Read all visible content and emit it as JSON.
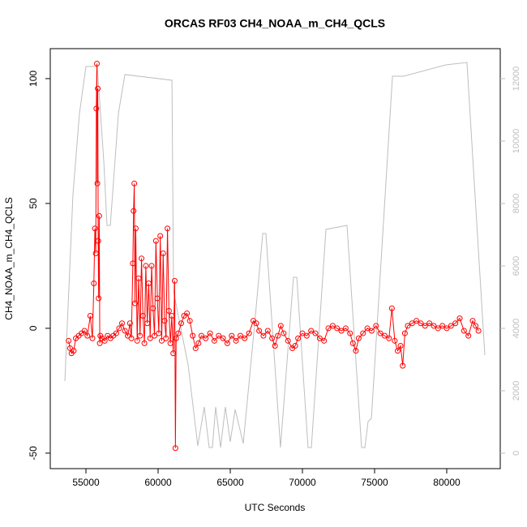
{
  "chart_data": {
    "type": "line",
    "title": "ORCAS RF03 CH4_NOAA_m_CH4_QCLS",
    "x_label": "UTC Seconds",
    "y_label": "CH4_NOAA_m_CH4_QCLS",
    "xlim": [
      52528,
      83708
    ],
    "xticks": [
      55000,
      60000,
      65000,
      70000,
      75000,
      80000
    ],
    "ylim": [
      -56.2,
      112.0
    ],
    "yticks": [
      -50,
      0,
      50,
      100
    ],
    "y2lim": [
      -494,
      12961
    ],
    "y2ticks": [
      0,
      2000,
      4000,
      6000,
      8000,
      10000,
      12000
    ],
    "series": [
      {
        "color": "#bebebe",
        "axis": "y2",
        "markers": false,
        "x": [
          53540,
          54100,
          54550,
          55000,
          55790,
          56240,
          56460,
          56690,
          57250,
          57700,
          60960,
          61070,
          62080,
          62750,
          63200,
          63540,
          63760,
          63990,
          64330,
          64660,
          65000,
          65340,
          65900,
          66690,
          67250,
          67470,
          68480,
          69380,
          69610,
          70390,
          70620,
          71630,
          73090,
          74100,
          74330,
          74550,
          74780,
          76240,
          77020,
          79940,
          81400,
          82640
        ],
        "values": [
          2312,
          8286,
          10883,
          12390,
          12390,
          9325,
          7299,
          7299,
          10883,
          12130,
          11948,
          5169,
          2831,
          234,
          1481,
          182,
          182,
          1481,
          182,
          1481,
          364,
          1403,
          312,
          4130,
          7039,
          7039,
          182,
          5636,
          5636,
          182,
          182,
          7169,
          7299,
          182,
          182,
          1013,
          1117,
          12078,
          12078,
          12442,
          12519,
          3143
        ]
      },
      {
        "color": "#ff0000",
        "markers": true,
        "x": [
          53800,
          53900,
          54000,
          54150,
          54300,
          54500,
          54700,
          54900,
          55100,
          55300,
          55450,
          55550,
          55620,
          55680,
          55720,
          55760,
          55790,
          55820,
          55850,
          55880,
          55920,
          55960,
          56000,
          56100,
          56300,
          56500,
          56700,
          56900,
          57100,
          57300,
          57500,
          57700,
          57900,
          58050,
          58150,
          58250,
          58300,
          58350,
          58400,
          58450,
          58550,
          58650,
          58750,
          58850,
          58950,
          59050,
          59150,
          59250,
          59350,
          59450,
          59550,
          59650,
          59750,
          59850,
          59950,
          60050,
          60150,
          60250,
          60350,
          60450,
          60550,
          60650,
          60750,
          60850,
          60950,
          61050,
          61150,
          61200,
          61250,
          61400,
          61600,
          61800,
          62000,
          62200,
          62400,
          62600,
          62800,
          63000,
          63300,
          63600,
          63900,
          64200,
          64500,
          64800,
          65100,
          65400,
          65700,
          66000,
          66300,
          66600,
          66800,
          67000,
          67300,
          67600,
          67900,
          68100,
          68300,
          68500,
          68700,
          69000,
          69300,
          69500,
          69700,
          70000,
          70300,
          70600,
          70900,
          71200,
          71500,
          71800,
          72100,
          72400,
          72700,
          73000,
          73300,
          73500,
          73700,
          73900,
          74200,
          74500,
          74800,
          75100,
          75400,
          75700,
          76000,
          76200,
          76400,
          76600,
          76800,
          76950,
          77100,
          77300,
          77600,
          77900,
          78200,
          78500,
          78800,
          79100,
          79400,
          79700,
          80000,
          80300,
          80600,
          80900,
          81200,
          81500,
          81800,
          82000,
          82200
        ],
        "values": [
          -5,
          -8,
          -10,
          -9,
          -4,
          -3,
          -2,
          -1,
          -3,
          5,
          -4,
          18,
          40,
          30,
          88,
          106,
          58,
          96,
          35,
          12,
          45,
          -6,
          -3,
          -4,
          -5,
          -3,
          -4,
          -3,
          -2,
          0,
          2,
          -1,
          -3,
          2,
          -4,
          26,
          47,
          58,
          10,
          40,
          -5,
          20,
          -3,
          28,
          5,
          -6,
          25,
          2,
          18,
          -4,
          25,
          8,
          -3,
          35,
          12,
          -2,
          37,
          -5,
          30,
          3,
          -4,
          40,
          7,
          -6,
          5,
          -10,
          19,
          -48,
          -4,
          -2,
          2,
          5,
          6,
          3,
          -3,
          -8,
          -6,
          -3,
          -4,
          -2,
          -5,
          -3,
          -4,
          -6,
          -3,
          -5,
          -3,
          -4,
          -2,
          3,
          2,
          -1,
          -3,
          -1,
          -4,
          -7,
          -3,
          1,
          -2,
          -5,
          -8,
          -7,
          -4,
          -2,
          -3,
          -1,
          -2,
          -4,
          -5,
          0,
          1,
          0,
          -1,
          0,
          -2,
          -6,
          -9,
          -4,
          -2,
          0,
          -1,
          1,
          -2,
          -3,
          -4,
          8,
          -5,
          -9,
          -7,
          -15,
          -2,
          1,
          2,
          3,
          2,
          1,
          2,
          1,
          0,
          1,
          0,
          1,
          2,
          4,
          -1,
          -3,
          3,
          1,
          -1
        ]
      }
    ]
  }
}
